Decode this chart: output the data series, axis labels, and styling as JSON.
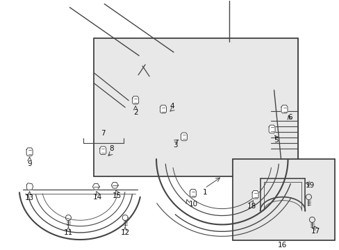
{
  "bg_color": "#ffffff",
  "fig_width": 4.89,
  "fig_height": 3.6,
  "dpi": 100,
  "line_color": "#444444",
  "box_fill": "#e8e8e8",
  "box_edge": "#333333"
}
